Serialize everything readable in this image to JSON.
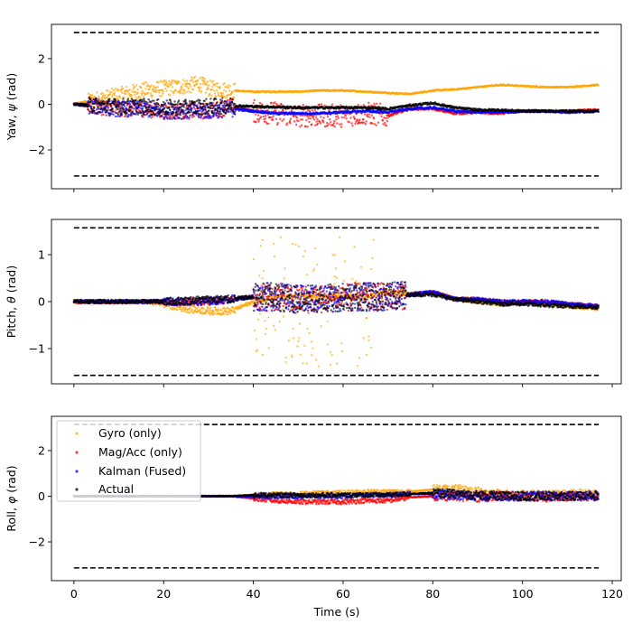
{
  "chart_data": [
    {
      "type": "scatter",
      "panel": "yaw",
      "ylabel": "Yaw, ψ (rad)",
      "ylabel_text": "Yaw, ",
      "ylabel_symbol": "ψ",
      "ylabel_unit": " (rad)",
      "xlabel": "",
      "xlim": [
        -5,
        122
      ],
      "ylim": [
        -3.7,
        3.5
      ],
      "yticks": [
        -2,
        0,
        2
      ],
      "ytick_labels": [
        "−2",
        "0",
        "2"
      ],
      "xticks": [
        0,
        20,
        40,
        60,
        80,
        100,
        120
      ],
      "bounds": [
        3.14159,
        -3.14159
      ],
      "series": [
        {
          "name": "Gyro (only)",
          "x": [
            0,
            5,
            10,
            15,
            20,
            25,
            28,
            30,
            35,
            40,
            45,
            50,
            55,
            60,
            65,
            70,
            75,
            80,
            85,
            90,
            95,
            100,
            105,
            110,
            117
          ],
          "y": [
            0,
            0.2,
            0.4,
            0.6,
            0.7,
            0.8,
            0.9,
            0.7,
            0.6,
            0.55,
            0.55,
            0.55,
            0.6,
            0.6,
            0.55,
            0.5,
            0.45,
            0.6,
            0.65,
            0.75,
            0.85,
            0.8,
            0.75,
            0.75,
            0.85
          ]
        },
        {
          "name": "Mag/Acc (only)",
          "x": [
            0,
            5,
            10,
            15,
            20,
            25,
            30,
            35,
            40,
            45,
            50,
            55,
            60,
            65,
            70,
            75,
            80,
            85,
            90,
            95,
            100,
            105,
            110,
            117
          ],
          "y": [
            0,
            -0.1,
            -0.2,
            -0.2,
            -0.3,
            -0.3,
            -0.3,
            -0.1,
            -0.3,
            -0.4,
            -0.5,
            -0.5,
            -0.5,
            -0.4,
            -0.5,
            -0.2,
            -0.2,
            -0.4,
            -0.35,
            -0.4,
            -0.3,
            -0.3,
            -0.3,
            -0.25
          ]
        },
        {
          "name": "Kalman (Fused)",
          "x": [
            0,
            5,
            10,
            15,
            20,
            25,
            30,
            35,
            40,
            45,
            50,
            55,
            60,
            65,
            70,
            75,
            80,
            85,
            90,
            95,
            100,
            105,
            110,
            117
          ],
          "y": [
            0,
            -0.1,
            -0.2,
            -0.2,
            -0.3,
            -0.3,
            -0.3,
            -0.2,
            -0.3,
            -0.4,
            -0.4,
            -0.4,
            -0.35,
            -0.3,
            -0.35,
            -0.2,
            -0.15,
            -0.3,
            -0.35,
            -0.35,
            -0.3,
            -0.3,
            -0.35,
            -0.3
          ]
        },
        {
          "name": "Actual",
          "x": [
            0,
            5,
            10,
            15,
            20,
            25,
            30,
            35,
            40,
            45,
            50,
            55,
            60,
            65,
            70,
            75,
            80,
            85,
            90,
            95,
            100,
            105,
            110,
            117
          ],
          "y": [
            0,
            -0.05,
            -0.1,
            -0.1,
            -0.15,
            -0.15,
            -0.1,
            -0.05,
            -0.1,
            -0.12,
            -0.15,
            -0.15,
            -0.15,
            -0.15,
            -0.2,
            -0.05,
            0.05,
            -0.15,
            -0.25,
            -0.25,
            -0.3,
            -0.3,
            -0.3,
            -0.3
          ]
        }
      ]
    },
    {
      "type": "scatter",
      "panel": "pitch",
      "ylabel": "Pitch, θ (rad)",
      "ylabel_text": "Pitch, ",
      "ylabel_symbol": "θ",
      "ylabel_unit": " (rad)",
      "xlabel": "",
      "xlim": [
        -5,
        122
      ],
      "ylim": [
        -1.75,
        1.75
      ],
      "yticks": [
        -1,
        0,
        1
      ],
      "ytick_labels": [
        "−1",
        "0",
        "1"
      ],
      "xticks": [
        0,
        20,
        40,
        60,
        80,
        100,
        120
      ],
      "bounds": [
        1.5708,
        -1.5708
      ],
      "series": [
        {
          "name": "Gyro (only)",
          "x": [
            0,
            5,
            10,
            15,
            20,
            25,
            30,
            35,
            40,
            45,
            50,
            55,
            60,
            65,
            70,
            75,
            80,
            85,
            90,
            95,
            100,
            105,
            110,
            117
          ],
          "y": [
            0,
            0,
            0,
            0,
            -0.05,
            -0.15,
            -0.2,
            -0.2,
            0,
            0.1,
            0.1,
            0.1,
            0.1,
            0.1,
            0.2,
            0.15,
            0.2,
            0.05,
            0,
            -0.05,
            0,
            -0.05,
            -0.1,
            -0.15
          ]
        },
        {
          "name": "Mag/Acc (only)",
          "x": [
            0,
            5,
            10,
            15,
            20,
            25,
            30,
            35,
            40,
            45,
            50,
            55,
            60,
            65,
            70,
            75,
            80,
            85,
            90,
            95,
            100,
            105,
            110,
            117
          ],
          "y": [
            0,
            0,
            0,
            0,
            0,
            0,
            0,
            0.05,
            0.1,
            0.1,
            0.05,
            0.05,
            0.1,
            0.1,
            0.1,
            0.15,
            0.2,
            0.05,
            0.05,
            0,
            0,
            0,
            -0.05,
            -0.1
          ]
        },
        {
          "name": "Kalman (Fused)",
          "x": [
            0,
            5,
            10,
            15,
            20,
            25,
            30,
            35,
            40,
            45,
            50,
            55,
            60,
            65,
            70,
            75,
            80,
            85,
            90,
            95,
            100,
            105,
            110,
            117
          ],
          "y": [
            0,
            0,
            0,
            0,
            0,
            0,
            0,
            0.05,
            0.1,
            0.1,
            0.05,
            0.05,
            0.1,
            0.1,
            0.1,
            0.15,
            0.2,
            0.05,
            0.05,
            0,
            0,
            0,
            -0.05,
            -0.1
          ]
        },
        {
          "name": "Actual",
          "x": [
            0,
            5,
            10,
            15,
            20,
            25,
            30,
            35,
            40,
            45,
            50,
            55,
            60,
            65,
            70,
            75,
            80,
            85,
            90,
            95,
            100,
            105,
            110,
            117
          ],
          "y": [
            0,
            0,
            0,
            0,
            0,
            0.02,
            0.05,
            0.05,
            0.1,
            0.1,
            0.05,
            0.05,
            0.1,
            0.1,
            0.1,
            0.15,
            0.15,
            0.05,
            0.0,
            -0.05,
            -0.05,
            -0.08,
            -0.1,
            -0.12
          ]
        }
      ]
    },
    {
      "type": "scatter",
      "panel": "roll",
      "ylabel": "Roll, φ (rad)",
      "ylabel_text": "Roll, ",
      "ylabel_symbol": "φ",
      "ylabel_unit": " (rad)",
      "xlabel": "Time (s)",
      "xlim": [
        -5,
        122
      ],
      "ylim": [
        -3.7,
        3.5
      ],
      "yticks": [
        -2,
        0,
        2
      ],
      "ytick_labels": [
        "−2",
        "0",
        "2"
      ],
      "xticks": [
        0,
        20,
        40,
        60,
        80,
        100,
        120
      ],
      "xtick_labels": [
        "0",
        "20",
        "40",
        "60",
        "80",
        "100",
        "120"
      ],
      "bounds": [
        3.14159,
        -3.14159
      ],
      "legend": {
        "placement": "upper-left",
        "entries": [
          "Gyro (only)",
          "Mag/Acc (only)",
          "Kalman (Fused)",
          "Actual"
        ]
      },
      "series": [
        {
          "name": "Gyro (only)",
          "x": [
            0,
            5,
            10,
            15,
            20,
            25,
            30,
            35,
            40,
            45,
            50,
            55,
            60,
            65,
            70,
            75,
            80,
            85,
            90,
            95,
            100,
            105,
            110,
            117
          ],
          "y": [
            0,
            0,
            0,
            0,
            0,
            0,
            0,
            0,
            0.05,
            0.1,
            0.1,
            0.15,
            0.15,
            0.2,
            0.2,
            0.2,
            0.3,
            0.3,
            0.2,
            0.1,
            0.05,
            0.05,
            0.1,
            0.1
          ]
        },
        {
          "name": "Mag/Acc (only)",
          "x": [
            0,
            5,
            10,
            15,
            20,
            25,
            30,
            35,
            40,
            45,
            50,
            55,
            60,
            65,
            70,
            75,
            80,
            85,
            90,
            95,
            100,
            105,
            110,
            117
          ],
          "y": [
            0,
            0,
            0,
            0,
            0,
            0,
            0,
            0,
            -0.1,
            -0.2,
            -0.25,
            -0.25,
            -0.25,
            -0.2,
            -0.2,
            -0.05,
            0,
            0,
            -0.05,
            0,
            0,
            -0.05,
            0,
            0
          ]
        },
        {
          "name": "Kalman (Fused)",
          "x": [
            0,
            5,
            10,
            15,
            20,
            25,
            30,
            35,
            40,
            45,
            50,
            55,
            60,
            65,
            70,
            75,
            80,
            85,
            90,
            95,
            100,
            105,
            110,
            117
          ],
          "y": [
            0,
            0,
            0,
            0,
            0,
            0,
            0,
            0,
            0,
            0,
            0,
            0,
            0,
            0.05,
            0.05,
            0.1,
            0.1,
            0.05,
            0,
            0,
            0,
            0,
            0,
            0
          ]
        },
        {
          "name": "Actual",
          "x": [
            0,
            5,
            10,
            15,
            20,
            25,
            30,
            35,
            40,
            45,
            50,
            55,
            60,
            65,
            70,
            75,
            80,
            85,
            90,
            95,
            100,
            105,
            110,
            117
          ],
          "y": [
            0,
            0,
            0,
            0,
            0,
            0,
            0,
            0,
            0.05,
            0.05,
            0.05,
            0.05,
            0.05,
            0.05,
            0.05,
            0.1,
            0.15,
            0.1,
            0.05,
            0,
            0,
            0,
            0,
            0.05
          ]
        }
      ]
    }
  ],
  "colors": {
    "Gyro (only)": "#ffa500",
    "Mag/Acc (only)": "#ff0000",
    "Kalman (Fused)": "#0000ff",
    "Actual": "#000000",
    "bounds": "#000000"
  }
}
